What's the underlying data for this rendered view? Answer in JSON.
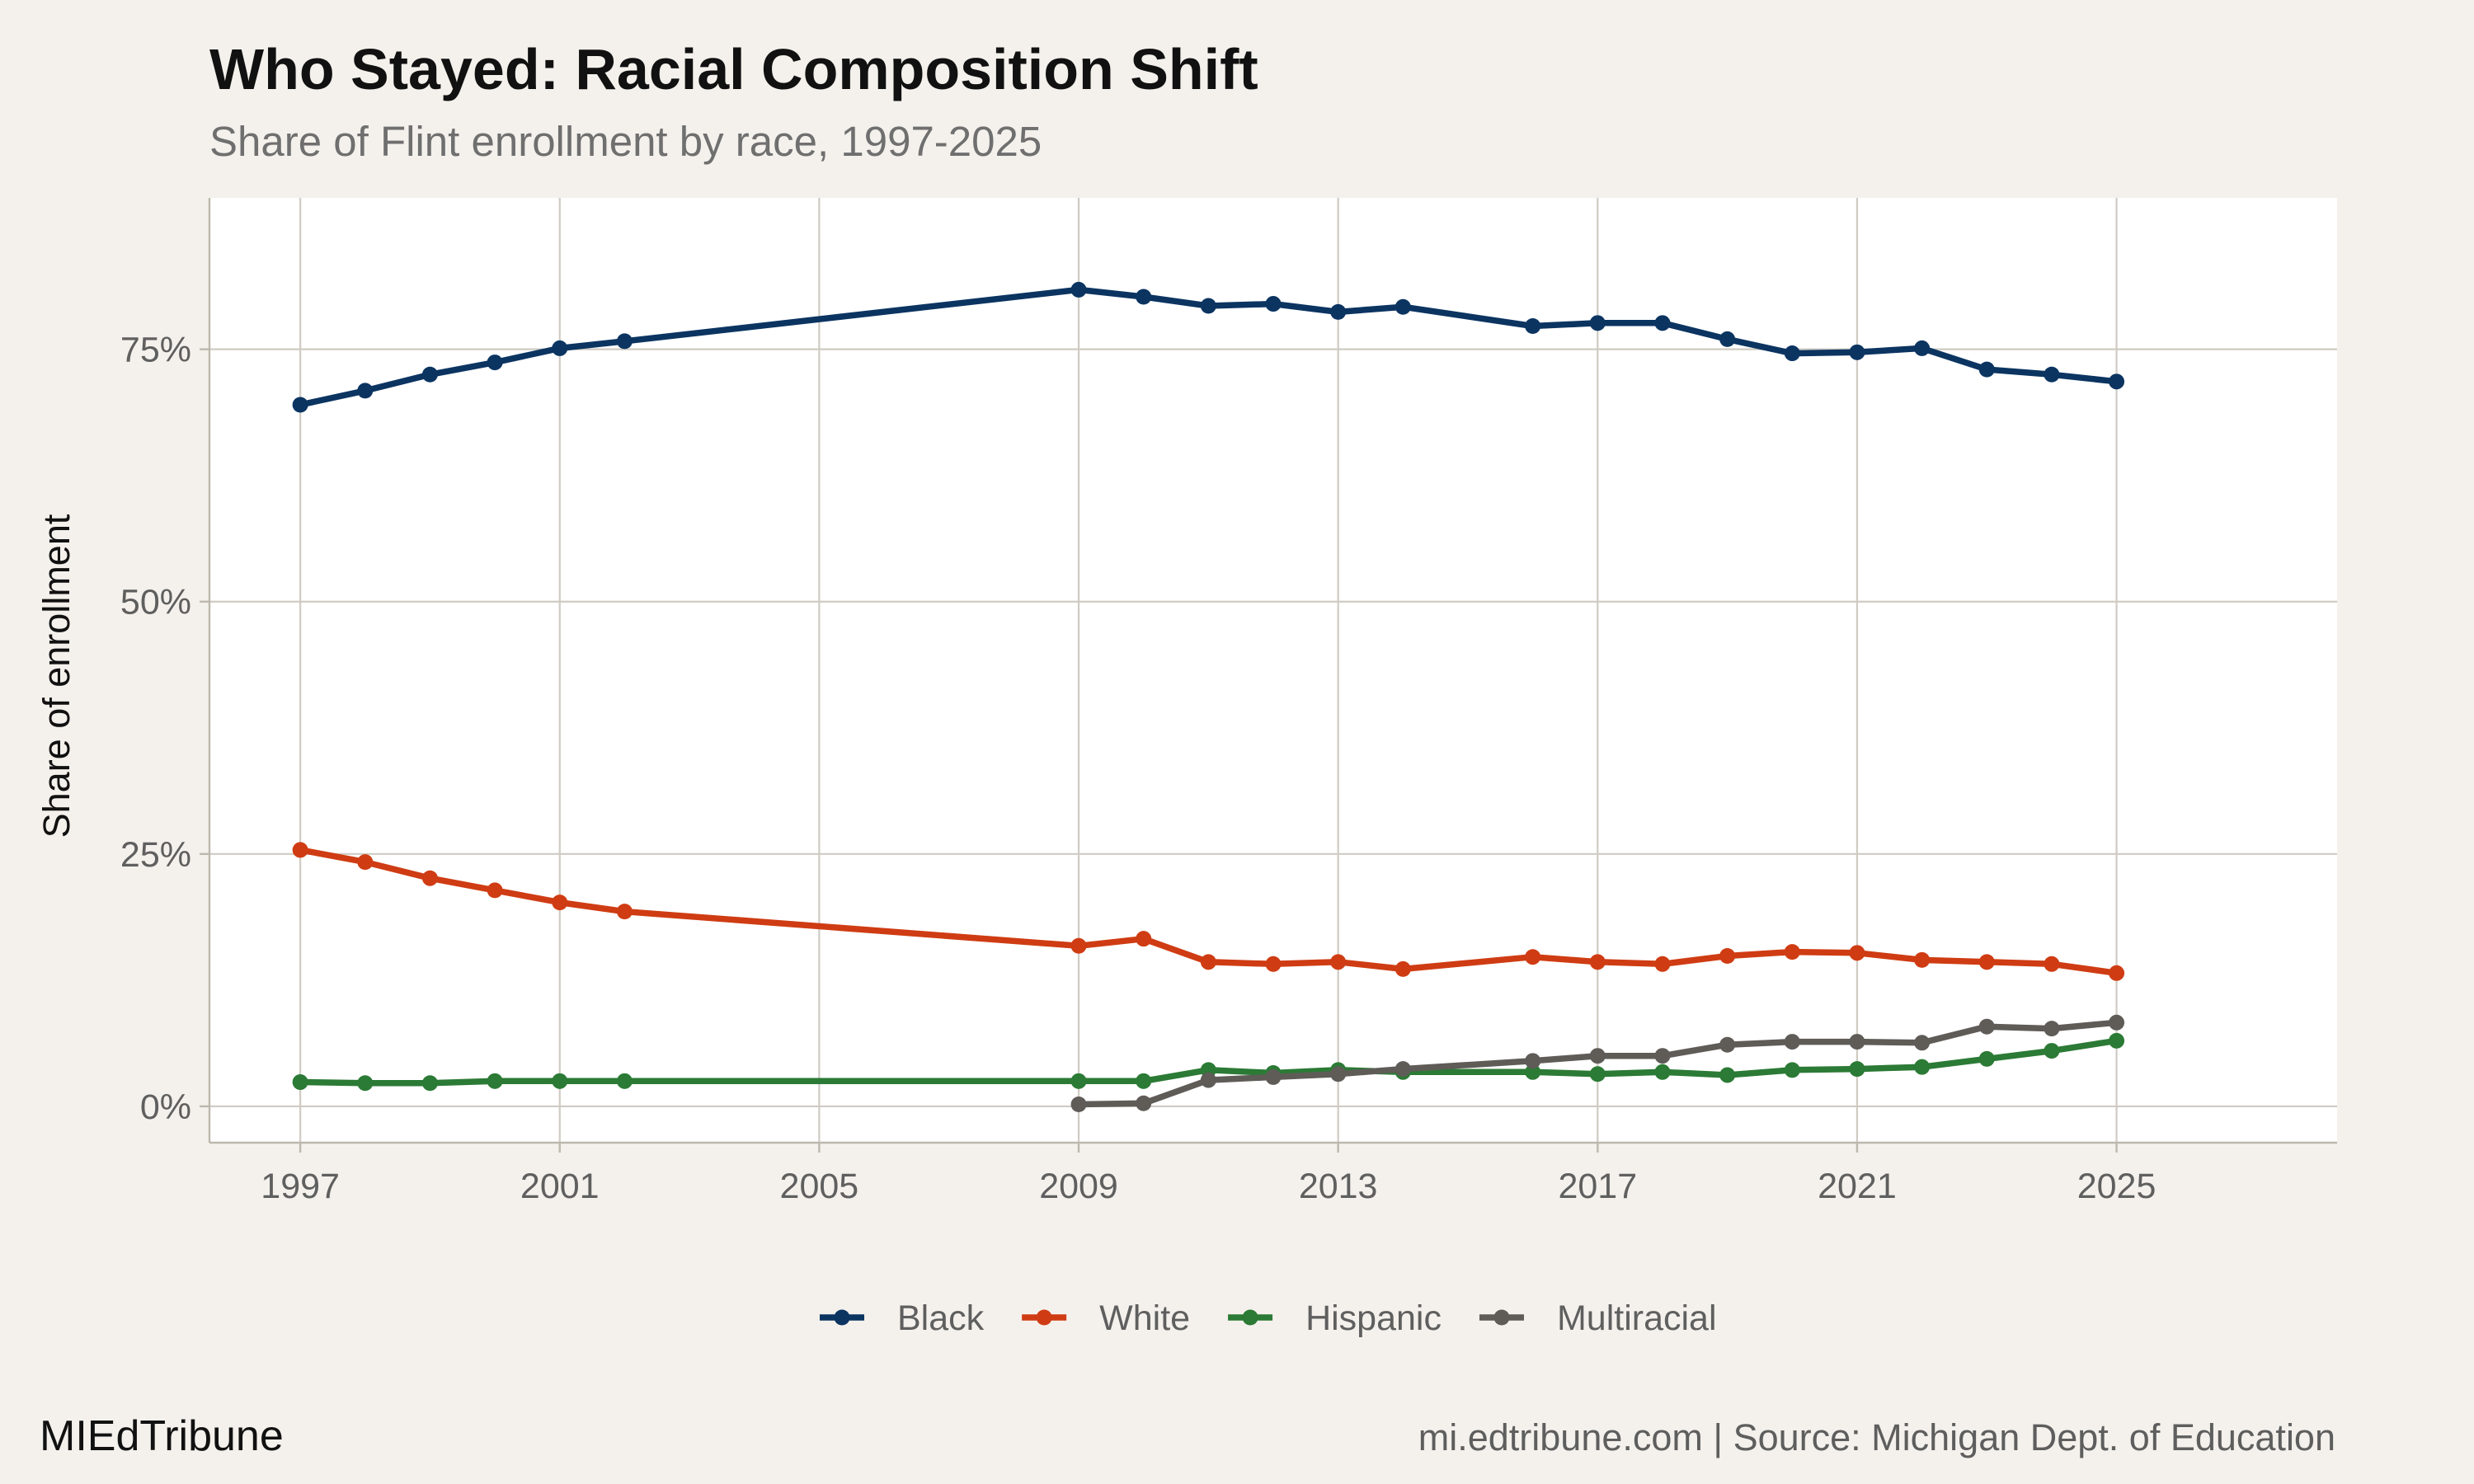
{
  "header": {
    "title": "Who Stayed: Racial Composition Shift",
    "subtitle": "Share of Flint enrollment by race, 1997-2025"
  },
  "footer": {
    "brand": "MIEdTribune",
    "credit": "mi.edtribune.com | Source: Michigan Dept. of Education"
  },
  "colors": {
    "background": "#f4f1ec",
    "panel": "#ffffff",
    "grid": "#cfcbc3",
    "Black": "#0b3461",
    "White": "#cf3c13",
    "Hispanic": "#2b7a35",
    "Multiracial": "#5f5c58"
  },
  "chart_data": {
    "type": "line",
    "title": "Who Stayed: Racial Composition Shift",
    "subtitle": "Share of Flint enrollment by race, 1997-2025",
    "xlabel": "",
    "ylabel": "Share of enrollment",
    "xlim": [
      1995.6,
      2028.4
    ],
    "ylim": [
      -3.6,
      90
    ],
    "x_ticks": [
      1997,
      2001,
      2005,
      2009,
      2013,
      2017,
      2021,
      2025
    ],
    "x_tick_labels": [
      "1997",
      "2001",
      "2005",
      "2009",
      "2013",
      "2017",
      "2021",
      "2025"
    ],
    "y_ticks": [
      0,
      25,
      50,
      75
    ],
    "y_tick_labels": [
      "0%",
      "25%",
      "50%",
      "75%"
    ],
    "grid": true,
    "legend_position": "bottom",
    "series": [
      {
        "name": "Black",
        "color": "#0b3461",
        "points": [
          [
            1997,
            69.5
          ],
          [
            1998,
            70.9
          ],
          [
            1999,
            72.5
          ],
          [
            2000,
            73.7
          ],
          [
            2001,
            75.1
          ],
          [
            2002,
            75.8
          ],
          [
            2009,
            80.9
          ],
          [
            2010,
            80.2
          ],
          [
            2011,
            79.3
          ],
          [
            2012,
            79.5
          ],
          [
            2013,
            78.7
          ],
          [
            2014,
            79.2
          ],
          [
            2016,
            77.3
          ],
          [
            2017,
            77.6
          ],
          [
            2018,
            77.6
          ],
          [
            2019,
            76.0
          ],
          [
            2020,
            74.6
          ],
          [
            2021,
            74.7
          ],
          [
            2022,
            75.1
          ],
          [
            2023,
            73.0
          ],
          [
            2024,
            72.5
          ],
          [
            2025,
            71.8
          ]
        ]
      },
      {
        "name": "White",
        "color": "#cf3c13",
        "points": [
          [
            1997,
            25.4
          ],
          [
            1998,
            24.2
          ],
          [
            1999,
            22.6
          ],
          [
            2000,
            21.4
          ],
          [
            2001,
            20.2
          ],
          [
            2002,
            19.3
          ],
          [
            2009,
            15.9
          ],
          [
            2010,
            16.6
          ],
          [
            2011,
            14.3
          ],
          [
            2012,
            14.1
          ],
          [
            2013,
            14.3
          ],
          [
            2014,
            13.6
          ],
          [
            2016,
            14.8
          ],
          [
            2017,
            14.3
          ],
          [
            2018,
            14.1
          ],
          [
            2019,
            14.9
          ],
          [
            2020,
            15.3
          ],
          [
            2021,
            15.2
          ],
          [
            2022,
            14.5
          ],
          [
            2023,
            14.3
          ],
          [
            2024,
            14.1
          ],
          [
            2025,
            13.2
          ]
        ]
      },
      {
        "name": "Hispanic",
        "color": "#2b7a35",
        "points": [
          [
            1997,
            2.4
          ],
          [
            1998,
            2.3
          ],
          [
            1999,
            2.3
          ],
          [
            2000,
            2.5
          ],
          [
            2001,
            2.5
          ],
          [
            2002,
            2.5
          ],
          [
            2009,
            2.5
          ],
          [
            2010,
            2.5
          ],
          [
            2011,
            3.6
          ],
          [
            2012,
            3.3
          ],
          [
            2013,
            3.6
          ],
          [
            2014,
            3.4
          ],
          [
            2016,
            3.4
          ],
          [
            2017,
            3.2
          ],
          [
            2018,
            3.4
          ],
          [
            2019,
            3.1
          ],
          [
            2020,
            3.6
          ],
          [
            2021,
            3.7
          ],
          [
            2022,
            3.9
          ],
          [
            2023,
            4.7
          ],
          [
            2024,
            5.5
          ],
          [
            2025,
            6.5
          ]
        ]
      },
      {
        "name": "Multiracial",
        "color": "#5f5c58",
        "points": [
          [
            2009,
            0.2
          ],
          [
            2010,
            0.3
          ],
          [
            2011,
            2.6
          ],
          [
            2012,
            2.9
          ],
          [
            2013,
            3.2
          ],
          [
            2014,
            3.7
          ],
          [
            2016,
            4.5
          ],
          [
            2017,
            5.0
          ],
          [
            2018,
            5.0
          ],
          [
            2019,
            6.1
          ],
          [
            2020,
            6.4
          ],
          [
            2021,
            6.4
          ],
          [
            2022,
            6.3
          ],
          [
            2023,
            7.9
          ],
          [
            2024,
            7.7
          ],
          [
            2025,
            8.3
          ]
        ]
      }
    ]
  }
}
